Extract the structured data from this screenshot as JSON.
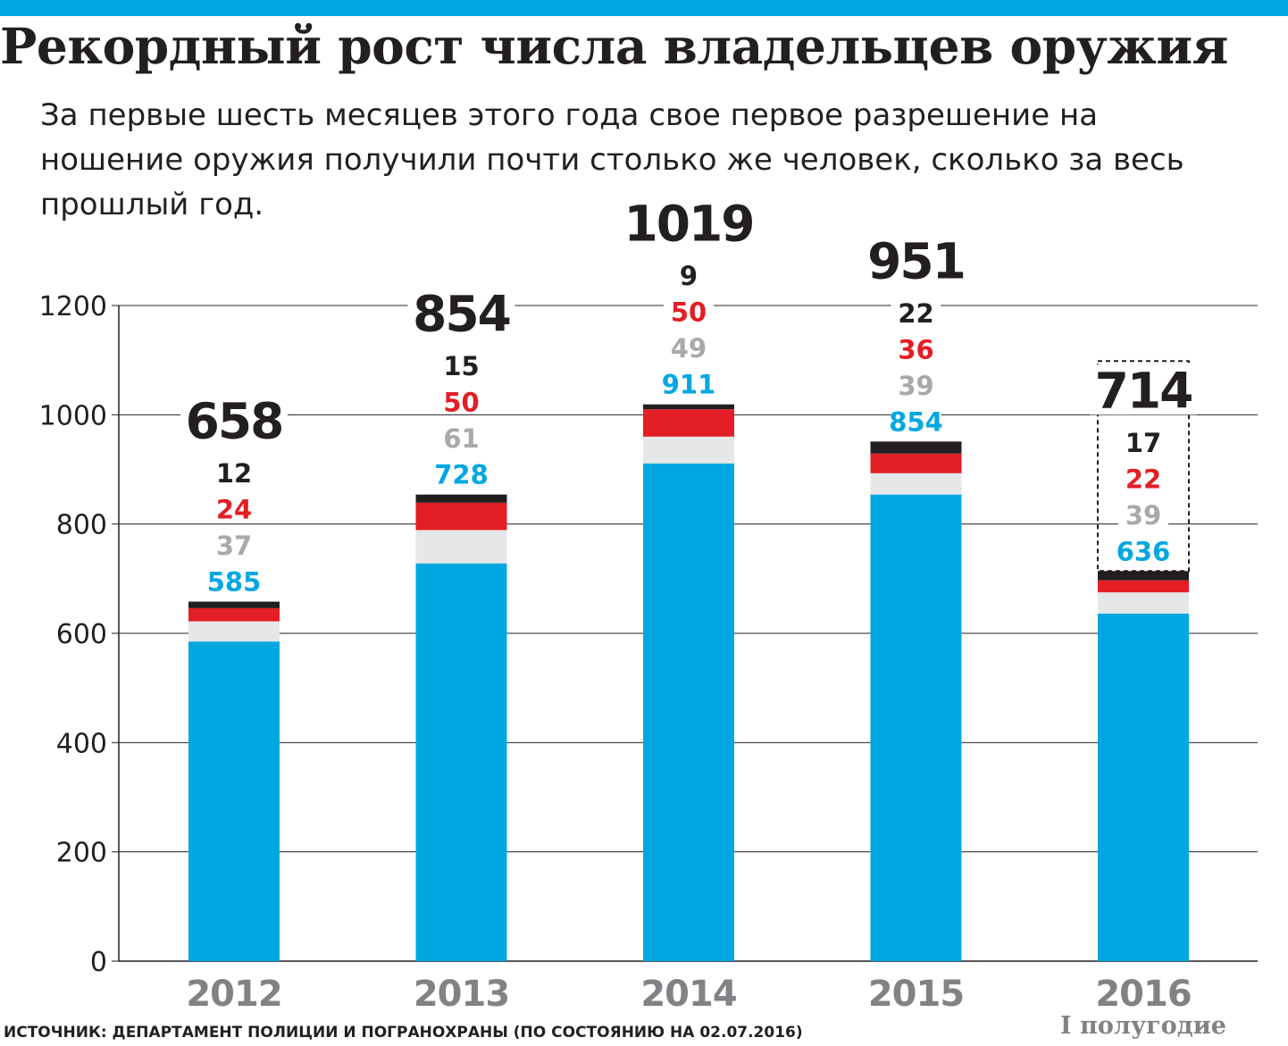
{
  "header": {
    "title": "Рекордный рост числа владельцев оружия",
    "subtitle": "За первые шесть месяцев этого года свое первое разрешение на ношение оружия получили почти столько же человек, сколько за весь прошлый год."
  },
  "footer": {
    "source": "ИСТОЧНИК: ДЕПАРТАМЕНТ ПОЛИЦИИ И ПОГРАНОХРАНЫ (ПО СОСТОЯНИЮ НА 02.07.2016)"
  },
  "colors": {
    "blue": "#00a7e1",
    "gray": "#e6e7e8",
    "red": "#e31e24",
    "black": "#231f20",
    "gray_label": "#a7a9ac",
    "axis_label": "#808285"
  },
  "chart_data": {
    "type": "bar",
    "stacked": true,
    "categories": [
      "2012",
      "2013",
      "2014",
      "2015",
      "2016"
    ],
    "category_note": {
      "index": 4,
      "text": "I полугодие"
    },
    "totals": [
      658,
      854,
      1019,
      951,
      714
    ],
    "series": [
      {
        "values": [
          585,
          728,
          911,
          854,
          636
        ],
        "color": "#00a7e1",
        "label_color": "#00a7e1"
      },
      {
        "values": [
          37,
          61,
          49,
          39,
          39
        ],
        "color": "#e6e7e8",
        "label_color": "#a7a9ac"
      },
      {
        "values": [
          24,
          50,
          50,
          36,
          22
        ],
        "color": "#e31e24",
        "label_color": "#e31e24"
      },
      {
        "values": [
          12,
          15,
          9,
          22,
          17
        ],
        "color": "#231f20",
        "label_color": "#231f20"
      }
    ],
    "yticks": [
      0,
      200,
      400,
      600,
      800,
      1000,
      1200
    ],
    "ylim": [
      0,
      1200
    ],
    "grid": true,
    "projection_index": 4
  }
}
